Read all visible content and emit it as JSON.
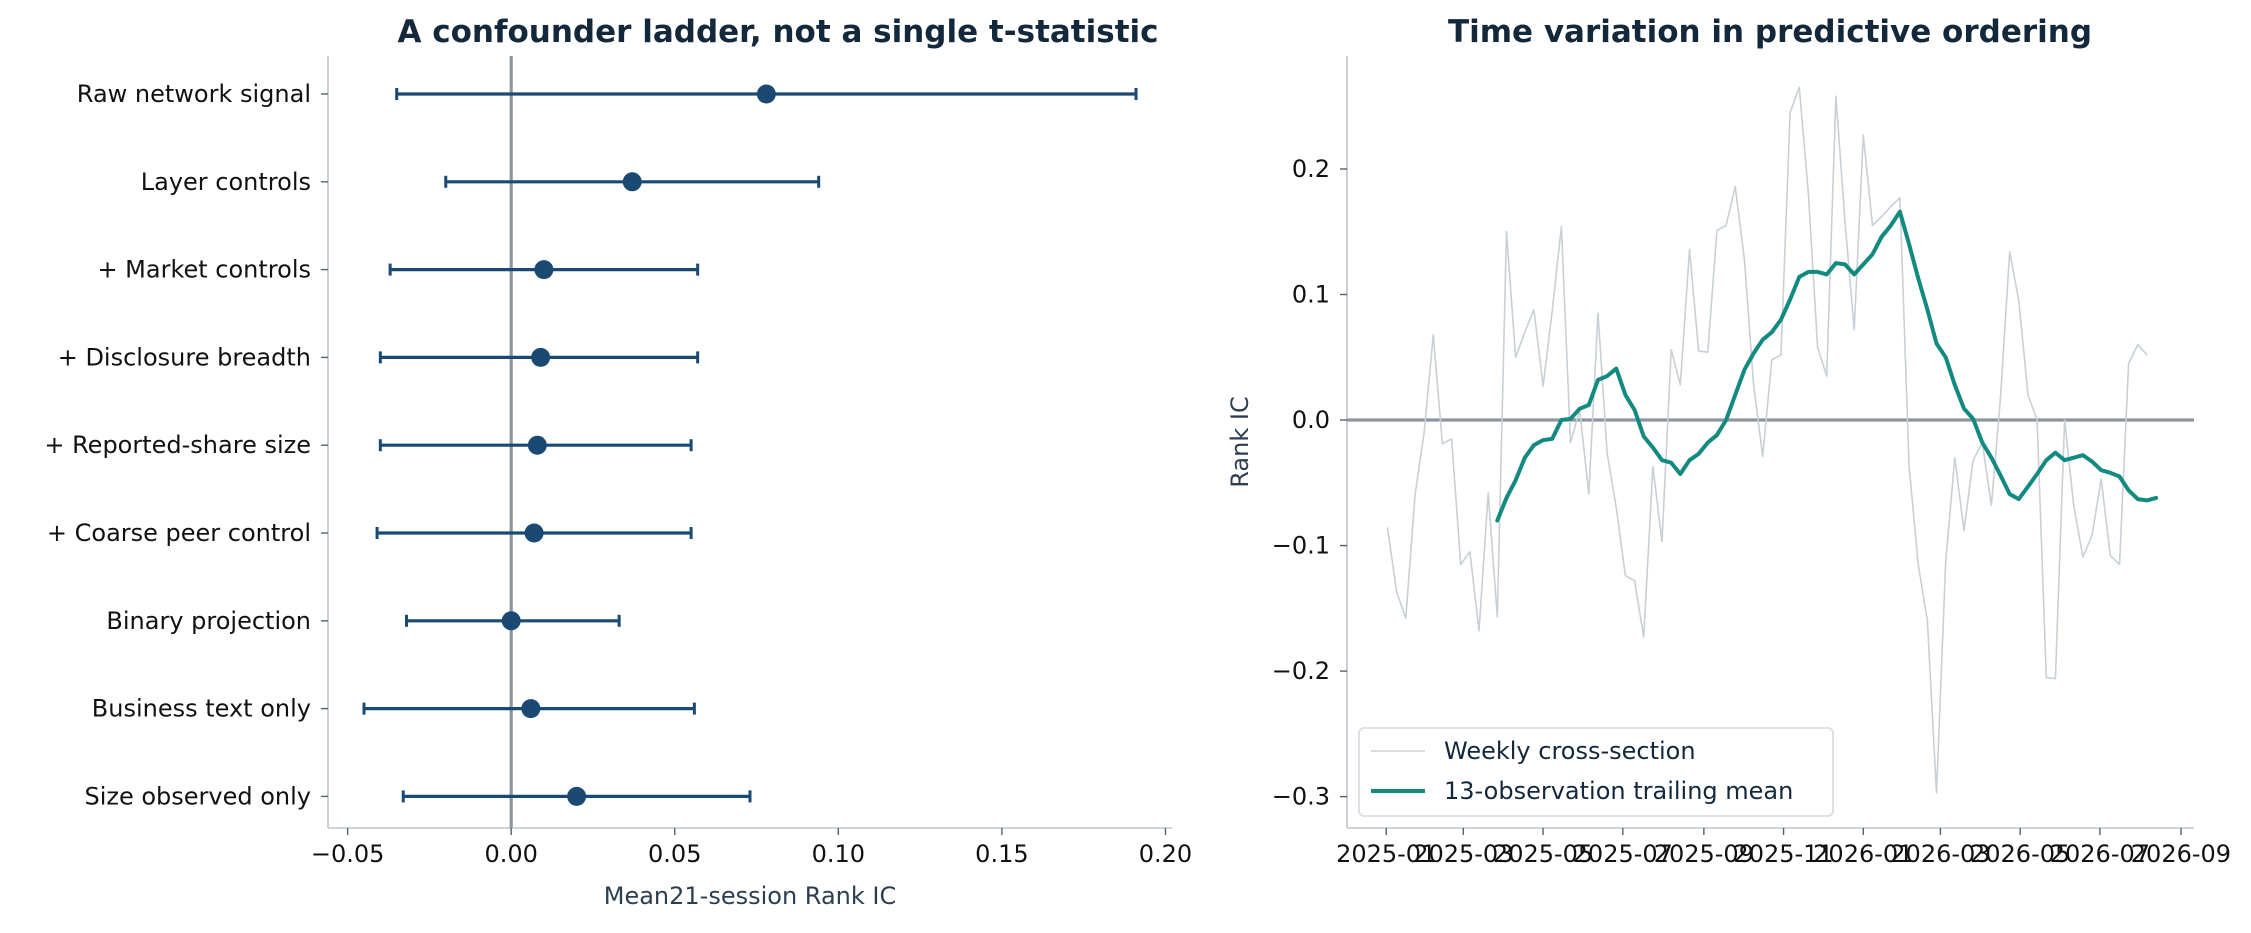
{
  "chart_data": [
    {
      "type": "scatter",
      "subtype": "forest-plot",
      "title": "A confounder ladder, not a single t-statistic",
      "xlabel": "Mean21-session Rank IC",
      "ylabel": "",
      "xlim": [
        -0.056,
        0.202
      ],
      "xticks": [
        -0.05,
        0.0,
        0.05,
        0.1,
        0.15,
        0.2
      ],
      "xtick_labels": [
        "−0.05",
        "0.00",
        "0.05",
        "0.10",
        "0.15",
        "0.20"
      ],
      "reference_line": 0.0,
      "grid": false,
      "colors": {
        "marker": "#1a4a74",
        "reference": "#8c96a0",
        "axis": "#bfc5cc"
      },
      "categories": [
        "Raw network signal",
        "Layer controls",
        "+ Market controls",
        "+ Disclosure breadth",
        "+ Reported-share size",
        "+ Coarse peer control",
        "Binary projection",
        "Business text only",
        "Size observed only"
      ],
      "points": [
        {
          "estimate": 0.078,
          "low": -0.035,
          "high": 0.191
        },
        {
          "estimate": 0.037,
          "low": -0.02,
          "high": 0.094
        },
        {
          "estimate": 0.01,
          "low": -0.037,
          "high": 0.057
        },
        {
          "estimate": 0.009,
          "low": -0.04,
          "high": 0.057
        },
        {
          "estimate": 0.008,
          "low": -0.04,
          "high": 0.055
        },
        {
          "estimate": 0.007,
          "low": -0.041,
          "high": 0.055
        },
        {
          "estimate": 0.0,
          "low": -0.032,
          "high": 0.033
        },
        {
          "estimate": 0.006,
          "low": -0.045,
          "high": 0.056
        },
        {
          "estimate": 0.02,
          "low": -0.033,
          "high": 0.073
        }
      ]
    },
    {
      "type": "line",
      "title": "Time variation in predictive ordering",
      "xlabel": "",
      "ylabel": "Rank IC",
      "xlim": [
        "2024-12-02",
        "2026-09-11"
      ],
      "ylim": [
        -0.325,
        0.29
      ],
      "xticks": [
        "2025-01-01",
        "2025-03-01",
        "2025-05-01",
        "2025-07-01",
        "2025-09-01",
        "2025-11-01",
        "2026-01-01",
        "2026-03-01",
        "2026-05-01",
        "2026-07-01",
        "2026-09-01"
      ],
      "xtick_labels": [
        "2025-01",
        "2025-03",
        "2025-05",
        "2025-07",
        "2025-09",
        "2025-11",
        "2026-01",
        "2026-03",
        "2026-05",
        "2026-07",
        "2026-09"
      ],
      "yticks": [
        -0.3,
        -0.2,
        -0.1,
        0.0,
        0.1,
        0.2
      ],
      "ytick_labels": [
        "−0.3",
        "−0.2",
        "−0.1",
        "0.0",
        "0.1",
        "0.2"
      ],
      "reference_line": 0.0,
      "grid": false,
      "legend": "lower-left",
      "colors": {
        "weekly": "#c8d0d6",
        "trailing": "#128a80",
        "reference": "#8c96a0",
        "axis": "#bfc5cc"
      },
      "series": [
        {
          "name": "Weekly cross-section",
          "points": [
            [
              "2025-01-02",
              -0.086
            ],
            [
              "2025-01-09",
              -0.137
            ],
            [
              "2025-01-16",
              -0.158
            ],
            [
              "2025-01-23",
              -0.06
            ],
            [
              "2025-01-30",
              -0.01
            ],
            [
              "2025-02-06",
              0.068
            ],
            [
              "2025-02-13",
              -0.019
            ],
            [
              "2025-02-20",
              -0.015
            ],
            [
              "2025-02-27",
              -0.115
            ],
            [
              "2025-03-06",
              -0.105
            ],
            [
              "2025-03-13",
              -0.168
            ],
            [
              "2025-03-20",
              -0.058
            ],
            [
              "2025-03-27",
              -0.157
            ],
            [
              "2025-04-03",
              0.15
            ],
            [
              "2025-04-10",
              0.05
            ],
            [
              "2025-04-17",
              0.07
            ],
            [
              "2025-04-24",
              0.088
            ],
            [
              "2025-05-01",
              0.027
            ],
            [
              "2025-05-08",
              0.087
            ],
            [
              "2025-05-15",
              0.154
            ],
            [
              "2025-05-22",
              -0.018
            ],
            [
              "2025-05-29",
              0.008
            ],
            [
              "2025-06-05",
              -0.059
            ],
            [
              "2025-06-12",
              0.085
            ],
            [
              "2025-06-19",
              -0.026
            ],
            [
              "2025-06-26",
              -0.07
            ],
            [
              "2025-07-03",
              -0.124
            ],
            [
              "2025-07-10",
              -0.128
            ],
            [
              "2025-07-17",
              -0.173
            ],
            [
              "2025-07-24",
              -0.037
            ],
            [
              "2025-07-31",
              -0.097
            ],
            [
              "2025-08-07",
              0.056
            ],
            [
              "2025-08-14",
              0.028
            ],
            [
              "2025-08-21",
              0.136
            ],
            [
              "2025-08-28",
              0.055
            ],
            [
              "2025-09-04",
              0.054
            ],
            [
              "2025-09-11",
              0.151
            ],
            [
              "2025-09-18",
              0.155
            ],
            [
              "2025-09-25",
              0.186
            ],
            [
              "2025-10-02",
              0.128
            ],
            [
              "2025-10-09",
              0.029
            ],
            [
              "2025-10-16",
              -0.029
            ],
            [
              "2025-10-23",
              0.048
            ],
            [
              "2025-10-30",
              0.052
            ],
            [
              "2025-11-06",
              0.245
            ],
            [
              "2025-11-13",
              0.265
            ],
            [
              "2025-11-20",
              0.18
            ],
            [
              "2025-11-27",
              0.058
            ],
            [
              "2025-12-04",
              0.035
            ],
            [
              "2025-12-11",
              0.258
            ],
            [
              "2025-12-18",
              0.158
            ],
            [
              "2025-12-25",
              0.072
            ],
            [
              "2026-01-01",
              0.227
            ],
            [
              "2026-01-08",
              0.155
            ],
            [
              "2026-01-15",
              0.162
            ],
            [
              "2026-01-22",
              0.17
            ],
            [
              "2026-01-29",
              0.177
            ],
            [
              "2026-02-05",
              -0.037
            ],
            [
              "2026-02-12",
              -0.115
            ],
            [
              "2026-02-19",
              -0.16
            ],
            [
              "2026-02-26",
              -0.297
            ],
            [
              "2026-03-05",
              -0.113
            ],
            [
              "2026-03-12",
              -0.03
            ],
            [
              "2026-03-19",
              -0.088
            ],
            [
              "2026-03-26",
              -0.032
            ],
            [
              "2026-04-02",
              -0.018
            ],
            [
              "2026-04-09",
              -0.068
            ],
            [
              "2026-04-16",
              0.018
            ],
            [
              "2026-04-23",
              0.134
            ],
            [
              "2026-04-30",
              0.095
            ],
            [
              "2026-05-07",
              0.02
            ],
            [
              "2026-05-14",
              0.0
            ],
            [
              "2026-05-21",
              -0.205
            ],
            [
              "2026-05-28",
              -0.206
            ],
            [
              "2026-06-04",
              0.0
            ],
            [
              "2026-06-11",
              -0.068
            ],
            [
              "2026-06-18",
              -0.109
            ],
            [
              "2026-06-25",
              -0.092
            ],
            [
              "2026-07-02",
              -0.047
            ],
            [
              "2026-07-09",
              -0.108
            ],
            [
              "2026-07-16",
              -0.115
            ],
            [
              "2026-07-23",
              0.045
            ],
            [
              "2026-07-30",
              0.06
            ],
            [
              "2026-08-06",
              0.052
            ]
          ]
        },
        {
          "name": "13-observation trailing mean",
          "points": [
            [
              "2025-03-27",
              -0.08
            ],
            [
              "2025-04-03",
              -0.062
            ],
            [
              "2025-04-10",
              -0.048
            ],
            [
              "2025-04-17",
              -0.03
            ],
            [
              "2025-04-24",
              -0.02
            ],
            [
              "2025-05-01",
              -0.016
            ],
            [
              "2025-05-08",
              -0.015
            ],
            [
              "2025-05-15",
              0.0
            ],
            [
              "2025-05-22",
              0.001
            ],
            [
              "2025-05-29",
              0.009
            ],
            [
              "2025-06-05",
              0.012
            ],
            [
              "2025-06-12",
              0.032
            ],
            [
              "2025-06-19",
              0.035
            ],
            [
              "2025-06-26",
              0.041
            ],
            [
              "2025-07-03",
              0.02
            ],
            [
              "2025-07-10",
              0.008
            ],
            [
              "2025-07-17",
              -0.013
            ],
            [
              "2025-07-24",
              -0.022
            ],
            [
              "2025-07-31",
              -0.032
            ],
            [
              "2025-08-07",
              -0.034
            ],
            [
              "2025-08-14",
              -0.043
            ],
            [
              "2025-08-21",
              -0.032
            ],
            [
              "2025-08-28",
              -0.027
            ],
            [
              "2025-09-04",
              -0.018
            ],
            [
              "2025-09-11",
              -0.012
            ],
            [
              "2025-09-18",
              0.0
            ],
            [
              "2025-09-25",
              0.02
            ],
            [
              "2025-10-02",
              0.04
            ],
            [
              "2025-10-09",
              0.053
            ],
            [
              "2025-10-16",
              0.064
            ],
            [
              "2025-10-23",
              0.07
            ],
            [
              "2025-10-30",
              0.08
            ],
            [
              "2025-11-06",
              0.096
            ],
            [
              "2025-11-13",
              0.114
            ],
            [
              "2025-11-20",
              0.118
            ],
            [
              "2025-11-27",
              0.118
            ],
            [
              "2025-12-04",
              0.116
            ],
            [
              "2025-12-11",
              0.125
            ],
            [
              "2025-12-18",
              0.124
            ],
            [
              "2025-12-25",
              0.116
            ],
            [
              "2026-01-01",
              0.124
            ],
            [
              "2026-01-08",
              0.132
            ],
            [
              "2026-01-15",
              0.146
            ],
            [
              "2026-01-22",
              0.155
            ],
            [
              "2026-01-29",
              0.166
            ],
            [
              "2026-02-05",
              0.14
            ],
            [
              "2026-02-12",
              0.113
            ],
            [
              "2026-02-19",
              0.088
            ],
            [
              "2026-02-26",
              0.061
            ],
            [
              "2026-03-05",
              0.05
            ],
            [
              "2026-03-12",
              0.028
            ],
            [
              "2026-03-19",
              0.009
            ],
            [
              "2026-03-26",
              0.001
            ],
            [
              "2026-04-02",
              -0.018
            ],
            [
              "2026-04-09",
              -0.03
            ],
            [
              "2026-04-16",
              -0.044
            ],
            [
              "2026-04-23",
              -0.059
            ],
            [
              "2026-04-30",
              -0.063
            ],
            [
              "2026-05-07",
              -0.053
            ],
            [
              "2026-05-14",
              -0.043
            ],
            [
              "2026-05-21",
              -0.032
            ],
            [
              "2026-05-28",
              -0.026
            ],
            [
              "2026-06-04",
              -0.032
            ],
            [
              "2026-06-11",
              -0.03
            ],
            [
              "2026-06-18",
              -0.028
            ],
            [
              "2026-06-25",
              -0.033
            ],
            [
              "2026-07-02",
              -0.04
            ],
            [
              "2026-07-09",
              -0.042
            ],
            [
              "2026-07-16",
              -0.045
            ],
            [
              "2026-07-23",
              -0.056
            ],
            [
              "2026-07-30",
              -0.063
            ],
            [
              "2026-08-06",
              -0.064
            ],
            [
              "2026-08-13",
              -0.062
            ]
          ]
        }
      ]
    }
  ]
}
